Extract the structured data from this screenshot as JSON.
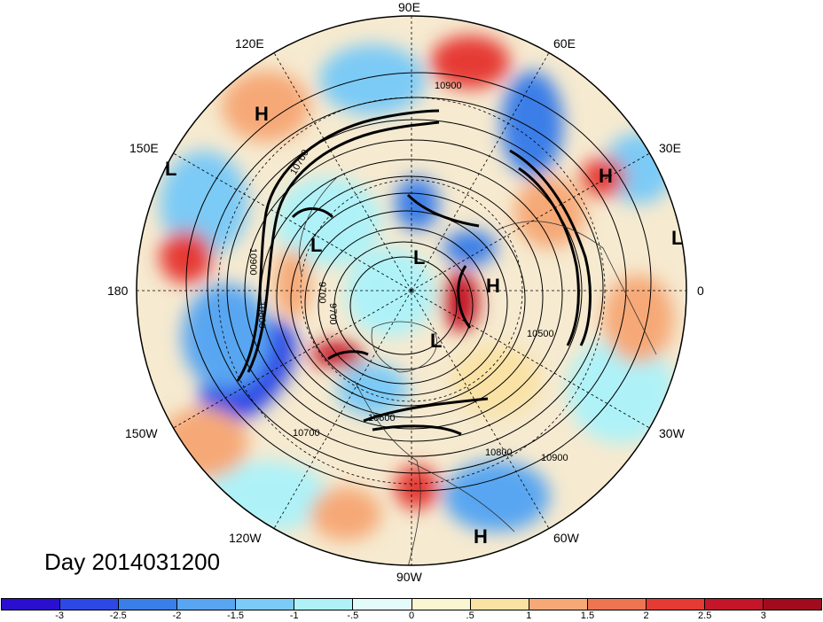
{
  "title": "Day 2014031200",
  "longitude_labels": [
    {
      "text": "90E",
      "lon": 90
    },
    {
      "text": "60E",
      "lon": 60
    },
    {
      "text": "30E",
      "lon": 30
    },
    {
      "text": "0",
      "lon": 0
    },
    {
      "text": "30W",
      "lon": -30
    },
    {
      "text": "60W",
      "lon": -60
    },
    {
      "text": "90W",
      "lon": -90
    },
    {
      "text": "120W",
      "lon": -120
    },
    {
      "text": "150W",
      "lon": -150
    },
    {
      "text": "180",
      "lon": 180
    },
    {
      "text": "150E",
      "lon": 150
    },
    {
      "text": "120E",
      "lon": 120
    }
  ],
  "contour_labels": [
    "10900",
    "10500",
    "10800",
    "10900",
    "10700",
    "10800",
    "9700",
    "10700",
    "10900",
    "10600",
    "9700"
  ],
  "pressure_centers": [
    {
      "type": "H"
    },
    {
      "type": "L"
    },
    {
      "type": "H"
    },
    {
      "type": "L"
    },
    {
      "type": "L"
    },
    {
      "type": "L"
    },
    {
      "type": "H"
    },
    {
      "type": "L"
    },
    {
      "type": "H"
    }
  ],
  "colorbar": {
    "colors": [
      "#2a0fd1",
      "#2e48e6",
      "#3a7ee8",
      "#58a6f1",
      "#7ccaf6",
      "#aef2f8",
      "#e4fbfb",
      "#fbf6d2",
      "#f9e2a4",
      "#f6a977",
      "#ee7551",
      "#e63b34",
      "#c41628",
      "#a10b1d"
    ],
    "ticks": [
      "-3",
      "-2.5",
      "-2",
      "-1.5",
      "-1",
      "-.5",
      "0",
      ".5",
      "1",
      "1.5",
      "2",
      "2.5",
      "3"
    ]
  }
}
